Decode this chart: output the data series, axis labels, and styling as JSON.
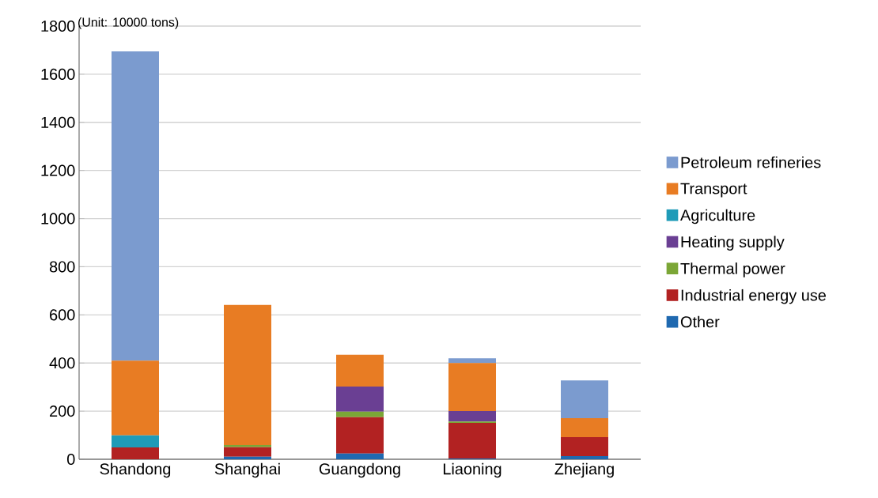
{
  "chart_data": {
    "type": "bar",
    "stacked": true,
    "categories": [
      "Shandong",
      "Shanghai",
      "Guangdong",
      "Liaoning",
      "Zhejiang"
    ],
    "series": [
      {
        "name": "Other",
        "color": "#1f69b0",
        "values": [
          0,
          11,
          24,
          3,
          13
        ]
      },
      {
        "name": "Industrial energy use",
        "color": "#b22222",
        "values": [
          49,
          39,
          151,
          148,
          79
        ]
      },
      {
        "name": "Thermal power",
        "color": "#7ba636",
        "values": [
          0,
          9,
          23,
          6,
          0
        ]
      },
      {
        "name": "Heating supply",
        "color": "#6a3f93",
        "values": [
          0,
          0,
          104,
          43,
          0
        ]
      },
      {
        "name": "Agriculture",
        "color": "#1f9bb8",
        "values": [
          50,
          0,
          0,
          0,
          0
        ]
      },
      {
        "name": "Transport",
        "color": "#e87c23",
        "values": [
          311,
          582,
          132,
          200,
          79
        ]
      },
      {
        "name": "Petroleum refineries",
        "color": "#7b9bcf",
        "values": [
          1285,
          0,
          0,
          20,
          157
        ]
      }
    ],
    "ylim": [
      0,
      1800
    ],
    "yticks": [
      0,
      200,
      400,
      600,
      800,
      1000,
      1200,
      1400,
      1600,
      1800
    ],
    "grid": "y",
    "legend": "right",
    "annotations": [
      "(Unit: 10000 tons)"
    ]
  }
}
